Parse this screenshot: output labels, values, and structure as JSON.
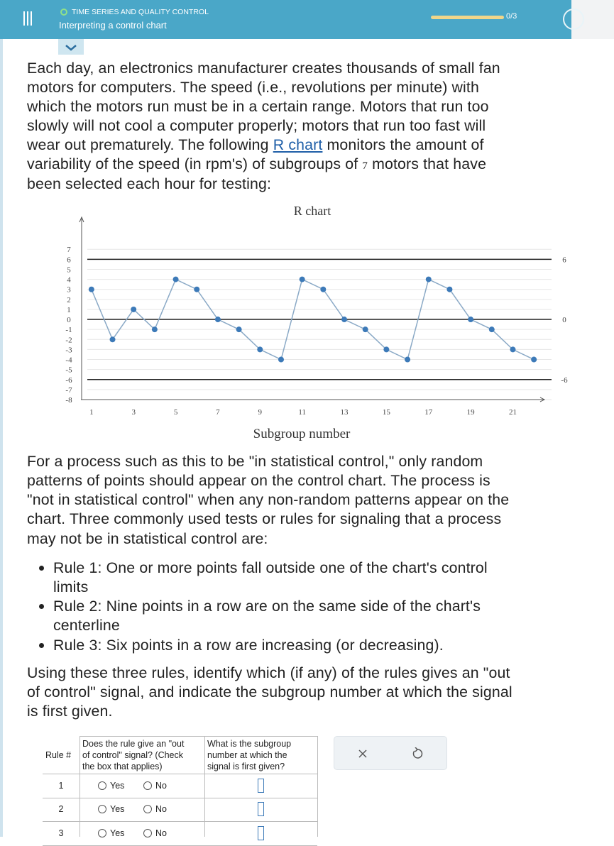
{
  "header": {
    "category": "TIME SERIES AND QUALITY CONTROL",
    "title": "Interpreting a control chart",
    "progress": "0/3"
  },
  "intro": {
    "lines": [
      "Each day, an electronics manufacturer creates thousands of small fan",
      "motors for computers. The speed (i.e., revolutions per minute) with",
      "which the motors run must be in a certain range. Motors that run too",
      "slowly will not cool a computer properly; motors that run too fast will",
      [
        "wear out prematurely. The following ",
        "R chart",
        " monitors the amount of"
      ],
      [
        "variability of the speed (in rpm's) of subgroups of ",
        "7",
        " motors that have"
      ],
      "been selected each hour for testing:"
    ]
  },
  "chart_data": {
    "type": "line",
    "title": "R chart",
    "x_label": "Subgroup number",
    "x": [
      1,
      2,
      3,
      4,
      5,
      6,
      7,
      8,
      9,
      10,
      11,
      12,
      13,
      14,
      15,
      16,
      17,
      18,
      19,
      20,
      21,
      22
    ],
    "values": [
      3,
      -2,
      1,
      -1,
      4,
      3,
      0,
      -1,
      -3,
      -4,
      4,
      3,
      0,
      -1,
      -3,
      -4,
      4,
      3,
      0,
      -1,
      -3,
      -4
    ],
    "xlim": [
      0.5,
      22.5
    ],
    "xticks": [
      1,
      3,
      5,
      7,
      9,
      11,
      13,
      15,
      17,
      19,
      21
    ],
    "ylim": [
      -8,
      9
    ],
    "yticks": [
      -8,
      -7,
      -6,
      -5,
      -4,
      -3,
      -2,
      -1,
      0,
      1,
      2,
      3,
      4,
      5,
      6,
      7
    ],
    "grid": true,
    "color": "#3d7ab8",
    "control_limits": [
      6,
      0,
      -6
    ]
  },
  "body": {
    "lines": [
      "For a process such as this to be \"in statistical control,\" only random",
      "patterns of points should appear on the control chart. The process is",
      "\"not in statistical control\" when any non-random patterns appear on the",
      "chart. Three commonly used tests or rules for signaling that a process",
      "may not be in statistical control are:"
    ]
  },
  "rules": [
    {
      "lines": [
        "Rule 1: One or more points fall outside one of the chart's control",
        "limits"
      ]
    },
    {
      "lines": [
        "Rule 2: Nine points in a row are on the same side of the chart's",
        "centerline"
      ]
    },
    {
      "lines": [
        "Rule 3: Six points in a row are increasing (or decreasing)."
      ]
    }
  ],
  "question": {
    "lines": [
      "Using these three rules, identify which (if any) of the rules gives an \"out",
      "of control\" signal, and indicate the subgroup number at which the signal",
      "is first given."
    ]
  },
  "table": {
    "headers": [
      {
        "lines": [
          "Rule #"
        ]
      },
      {
        "lines": [
          "Does the rule give an \"out",
          "of control\" signal? (Check",
          "the box that applies)"
        ]
      },
      {
        "lines": [
          "What is the subgroup",
          "number at which the",
          "signal is first given?"
        ]
      }
    ],
    "rows": [
      {
        "rule": "1",
        "yes": "Yes",
        "no": "No"
      },
      {
        "rule": "2",
        "yes": "Yes",
        "no": "No"
      },
      {
        "rule": "3",
        "yes": "Yes",
        "no": "No"
      }
    ]
  }
}
